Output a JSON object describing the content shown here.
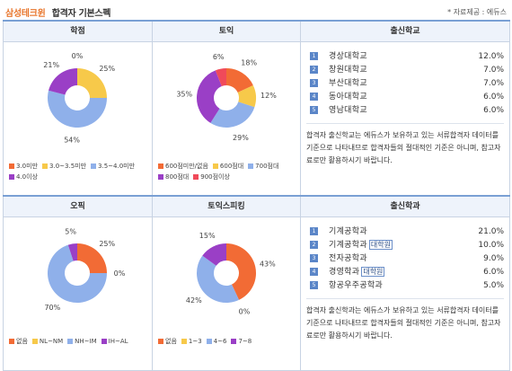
{
  "header": {
    "brand": "삼성테크윈",
    "title": "합격자 기본스펙",
    "source": "* 자료제공 : 에듀스"
  },
  "colors": {
    "orange": "#f26b35",
    "yellow": "#f7c94a",
    "blue": "#8fb0ea",
    "purple": "#9a3fc6"
  },
  "sections": {
    "gpa": "학점",
    "toeic": "토익",
    "school": "출신학교",
    "opic": "오픽",
    "speaking": "토익스피킹",
    "major": "출신학과"
  },
  "chart_data": [
    {
      "type": "pie",
      "title": "학점",
      "labels": [
        "3.0미만",
        "3.0~3.5미만",
        "3.5~4.0미만",
        "4.0이상"
      ],
      "values": [
        0,
        25,
        54,
        21
      ],
      "value_labels": [
        "0%",
        "25%",
        "54%",
        "21%"
      ],
      "colors": [
        "#f26b35",
        "#f7c94a",
        "#8fb0ea",
        "#9a3fc6"
      ]
    },
    {
      "type": "pie",
      "title": "토익",
      "labels": [
        "600점미만/없음",
        "600점대",
        "700점대",
        "800점대",
        "900점이상"
      ],
      "values": [
        18,
        12,
        29,
        35,
        6
      ],
      "value_labels": [
        "18%",
        "12%",
        "29%",
        "35%",
        "6%"
      ],
      "colors": [
        "#f26b35",
        "#f7c94a",
        "#8fb0ea",
        "#9a3fc6",
        "#f04a5a"
      ]
    },
    {
      "type": "pie",
      "title": "오픽",
      "labels": [
        "없음",
        "NL~NM",
        "NH~IM",
        "IH~AL"
      ],
      "values": [
        25,
        0,
        70,
        5
      ],
      "value_labels": [
        "25%",
        "0%",
        "70%",
        "5%"
      ],
      "colors": [
        "#f26b35",
        "#f7c94a",
        "#8fb0ea",
        "#9a3fc6"
      ]
    },
    {
      "type": "pie",
      "title": "토익스피킹",
      "labels": [
        "없음",
        "1~3",
        "4~6",
        "7~8"
      ],
      "values": [
        43,
        0,
        42,
        15
      ],
      "value_labels": [
        "43%",
        "0%",
        "42%",
        "15%"
      ],
      "colors": [
        "#f26b35",
        "#f7c94a",
        "#8fb0ea",
        "#9a3fc6"
      ]
    }
  ],
  "schools": [
    {
      "n": "1",
      "name": "경상대학교",
      "val": "12.0%"
    },
    {
      "n": "2",
      "name": "창원대학교",
      "val": "7.0%"
    },
    {
      "n": "3",
      "name": "부산대학교",
      "val": "7.0%"
    },
    {
      "n": "4",
      "name": "동아대학교",
      "val": "6.0%"
    },
    {
      "n": "5",
      "name": "영남대학교",
      "val": "6.0%"
    }
  ],
  "majors": [
    {
      "n": "1",
      "name": "기계공학과",
      "tag": "",
      "val": "21.0%"
    },
    {
      "n": "2",
      "name": "기계공학과",
      "tag": "대학원",
      "val": "10.0%"
    },
    {
      "n": "3",
      "name": "전자공학과",
      "tag": "",
      "val": "9.0%"
    },
    {
      "n": "4",
      "name": "경영학과",
      "tag": "대학원",
      "val": "6.0%"
    },
    {
      "n": "5",
      "name": "항공우주공학과",
      "tag": "",
      "val": "5.0%"
    }
  ],
  "notes": {
    "school": "합격자 출신학교는 에듀스가 보유하고 있는 서류합격자 데이터를 기준으로 나타내므로 합격자들의 절대적인 기준은 아니며, 참고자료로만 활용하시기 바랍니다.",
    "major": "합격자 출신학과는 에듀스가 보유하고 있는 서류합격자 데이터를 기준으로 나타내므로 합격자들의 절대적인 기준은 아니며, 참고자료로만 활용하시기 바랍니다."
  }
}
